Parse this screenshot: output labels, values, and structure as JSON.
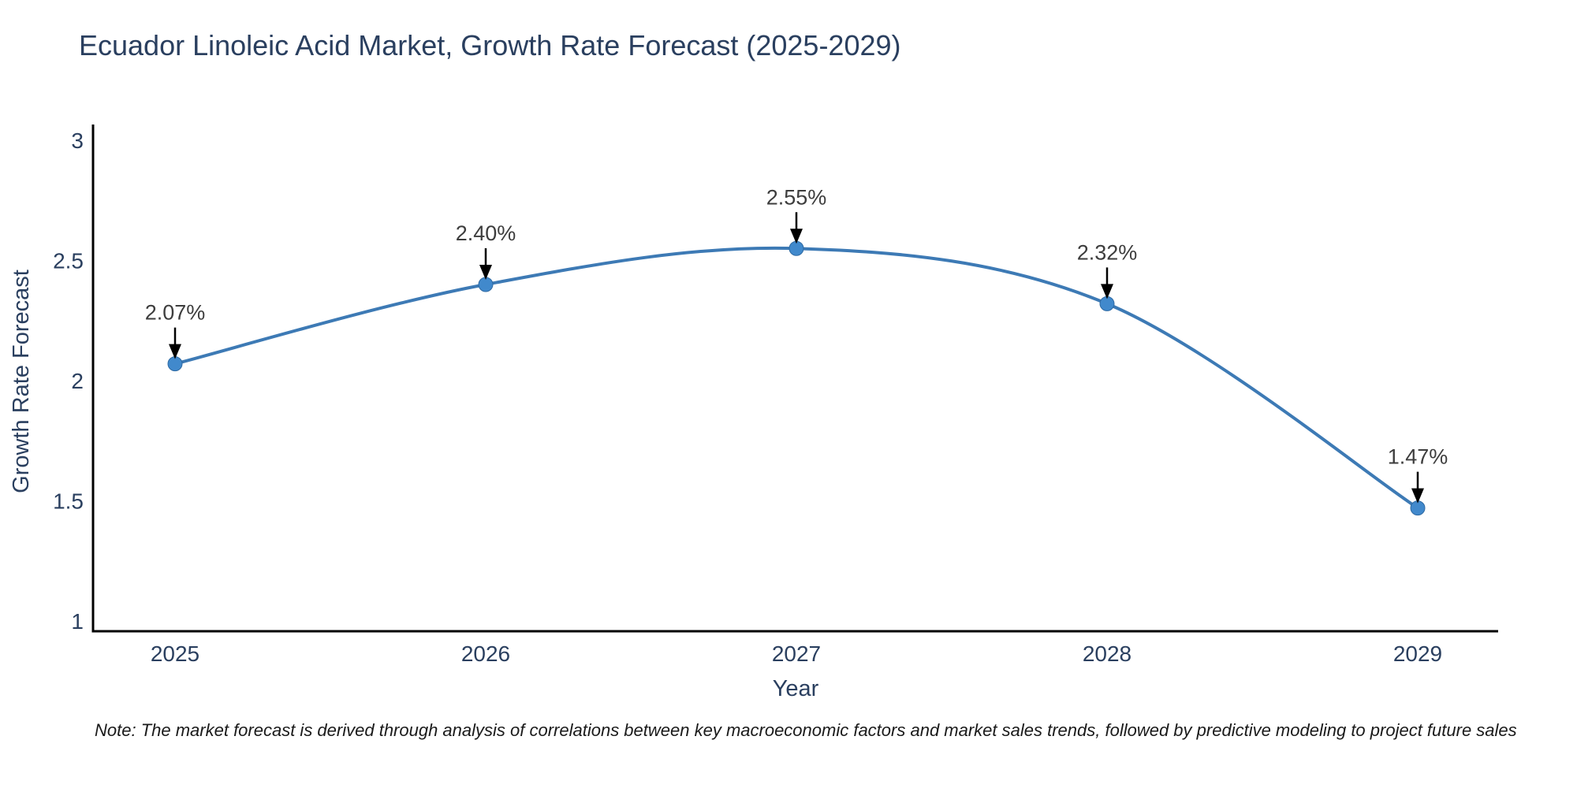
{
  "title": "Ecuador Linoleic Acid Market, Growth Rate Forecast (2025-2029)",
  "note": "Note: The market forecast is derived through analysis of correlations between key macroeconomic factors and market sales trends, followed by predictive modeling to project future sales",
  "colors": {
    "title_text": "#2a3f5f",
    "tick_text": "#2a3f5f",
    "axis_line": "#000000",
    "line": "#3d7ab5",
    "marker_fill": "#4189cc",
    "marker_edge": "#2f6aa3",
    "annotation_text": "#3d3d3d",
    "arrow": "#000000",
    "note_text": "#1a1a1a",
    "background": "#ffffff"
  },
  "chart_data": {
    "type": "line",
    "title": "Ecuador Linoleic Acid Market, Growth Rate Forecast (2025-2029)",
    "xlabel": "Year",
    "ylabel": "Growth Rate Forecast",
    "x": [
      2025,
      2026,
      2027,
      2028,
      2029
    ],
    "values": [
      2.07,
      2.4,
      2.55,
      2.32,
      1.47
    ],
    "point_labels": [
      "2.07%",
      "2.40%",
      "2.55%",
      "2.32%",
      "1.47%"
    ],
    "xtick_labels": [
      "2025",
      "2026",
      "2027",
      "2028",
      "2029"
    ],
    "yticks": [
      1,
      1.5,
      2,
      2.5,
      3
    ],
    "ytick_labels": [
      "1",
      "1.5",
      "2",
      "2.5",
      "3"
    ],
    "ylim": [
      1,
      3
    ],
    "line_shape": "spline",
    "grid": false,
    "legend_visible": false,
    "annotations": "black down-arrows from each percentage label to its marker"
  }
}
